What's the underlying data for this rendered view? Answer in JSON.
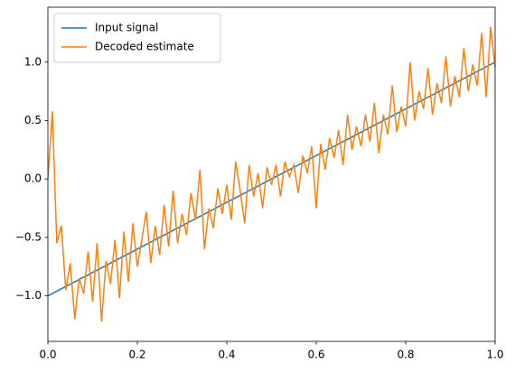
{
  "chart_data": {
    "type": "line",
    "xlim": [
      0,
      1
    ],
    "ylim": [
      -1.39,
      1.47
    ],
    "xticks": [
      {
        "value": 0,
        "label": "0.0"
      },
      0.2,
      0.4,
      0.6,
      0.8,
      {
        "value": 1,
        "label": "1.0"
      }
    ],
    "yticks": [
      {
        "value": -1,
        "label": "−1.0"
      },
      {
        "value": -0.5,
        "label": "−0.5"
      },
      {
        "value": 0,
        "label": "0.0"
      },
      0.5,
      {
        "value": 1,
        "label": "1.0"
      }
    ],
    "legend": "upper left",
    "series": [
      {
        "name": "Input signal",
        "color": "#1f77b4",
        "x": [
          0,
          1
        ],
        "values": [
          -1,
          1
        ]
      },
      {
        "name": "Decoded estimate",
        "color": "#ff7f0e",
        "x": [
          0,
          0.01,
          0.02,
          0.03,
          0.04,
          0.05,
          0.06,
          0.07,
          0.08,
          0.09,
          0.1,
          0.11,
          0.12,
          0.13,
          0.14,
          0.15,
          0.16,
          0.17,
          0.18,
          0.19,
          0.2,
          0.21,
          0.22,
          0.23,
          0.24,
          0.25,
          0.26,
          0.27,
          0.28,
          0.29,
          0.3,
          0.31,
          0.32,
          0.33,
          0.34,
          0.35,
          0.36,
          0.37,
          0.38,
          0.39,
          0.4,
          0.41,
          0.42,
          0.43,
          0.44,
          0.45,
          0.46,
          0.47,
          0.48,
          0.49,
          0.5,
          0.51,
          0.52,
          0.53,
          0.54,
          0.55,
          0.56,
          0.57,
          0.58,
          0.59,
          0.6,
          0.61,
          0.62,
          0.63,
          0.64,
          0.65,
          0.66,
          0.67,
          0.68,
          0.69,
          0.7,
          0.71,
          0.72,
          0.73,
          0.74,
          0.75,
          0.76,
          0.77,
          0.78,
          0.79,
          0.8,
          0.81,
          0.82,
          0.83,
          0.84,
          0.85,
          0.86,
          0.87,
          0.88,
          0.89,
          0.9,
          0.91,
          0.92,
          0.93,
          0.94,
          0.95,
          0.96,
          0.97,
          0.98,
          0.99,
          1
        ],
        "values": [
          0,
          0.58,
          -0.55,
          -0.4,
          -0.95,
          -0.72,
          -1.2,
          -0.85,
          -0.98,
          -0.62,
          -1.05,
          -0.55,
          -1.22,
          -0.7,
          -0.9,
          -0.52,
          -1.02,
          -0.45,
          -0.88,
          -0.38,
          -0.75,
          -0.52,
          -0.28,
          -0.72,
          -0.4,
          -0.65,
          -0.22,
          -0.58,
          -0.1,
          -0.55,
          -0.3,
          -0.48,
          -0.12,
          -0.35,
          0.08,
          -0.6,
          -0.25,
          -0.42,
          -0.08,
          -0.3,
          -0.05,
          -0.35,
          0.15,
          -0.1,
          -0.38,
          0.12,
          -0.15,
          0.05,
          -0.25,
          0.1,
          -0.05,
          0.12,
          -0.15,
          0.15,
          0.02,
          0.12,
          -0.12,
          0.2,
          0.05,
          0.28,
          -0.25,
          0.3,
          0.08,
          0.35,
          0.18,
          0.42,
          0.12,
          0.55,
          0.25,
          0.45,
          0.28,
          0.55,
          0.32,
          0.65,
          0.22,
          0.55,
          0.38,
          0.8,
          0.4,
          0.62,
          0.45,
          1.0,
          0.5,
          0.75,
          0.6,
          0.95,
          0.55,
          0.82,
          0.65,
          1.05,
          0.62,
          0.88,
          0.7,
          1.12,
          0.75,
          0.98,
          0.8,
          1.25,
          0.7,
          1.3,
          0.95
        ]
      }
    ]
  }
}
